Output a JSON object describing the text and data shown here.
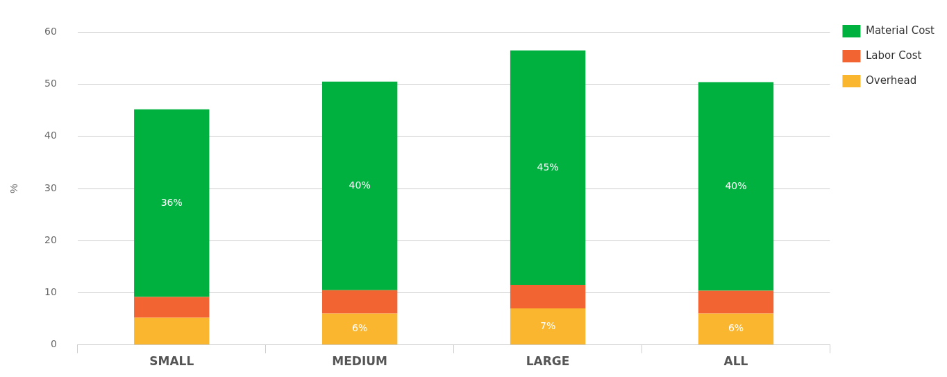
{
  "chart_data": {
    "type": "bar",
    "stacked": true,
    "ylabel": "%",
    "categories": [
      "SMALL",
      "MEDIUM",
      "LARGE",
      "ALL"
    ],
    "series": [
      {
        "name": "Overhead",
        "color": "#fbb62f",
        "values": [
          5.2,
          6,
          7,
          6
        ],
        "value_labels": [
          null,
          "6%",
          "7%",
          "6%"
        ]
      },
      {
        "name": "Labor Cost",
        "color": "#f26532",
        "values": [
          4,
          4.5,
          4.5,
          4.4
        ]
      },
      {
        "name": "Material Cost",
        "color": "#00b140",
        "values": [
          36,
          40,
          45,
          40
        ],
        "value_labels": [
          "36%",
          "40%",
          "45%",
          "40%"
        ]
      }
    ],
    "ylim": [
      0,
      60
    ],
    "yticks": [
      0,
      10,
      20,
      30,
      40,
      50,
      60
    ],
    "grid": "y",
    "legend": "top right"
  }
}
